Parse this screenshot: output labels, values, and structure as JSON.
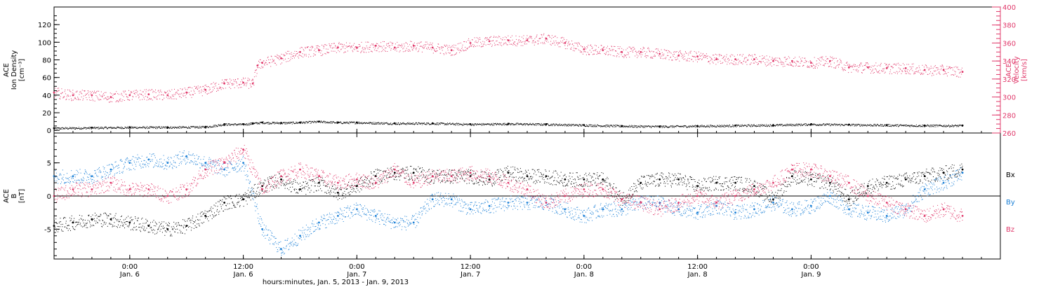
{
  "colors": {
    "black": "#000000",
    "red": "#e0386a",
    "blue": "#1a7fd6"
  },
  "chart_data": [
    {
      "type": "scatter",
      "panel": "top",
      "ylabel_left": [
        "ACE",
        "Ion Density",
        "[cm⁻³]"
      ],
      "ylabel_right": [
        "ACE",
        "Velocity",
        "[km/s]"
      ],
      "ylim_left": [
        -3,
        140
      ],
      "ylim_right": [
        260,
        400
      ],
      "yticks_left": [
        0,
        20,
        40,
        60,
        80,
        100,
        120
      ],
      "yticks_right": [
        260,
        280,
        300,
        320,
        340,
        360,
        380,
        400
      ],
      "series": [
        {
          "axis": "left",
          "color": "black",
          "x": [
            -8,
            -4,
            0,
            4,
            8,
            10,
            12,
            13,
            14,
            16,
            18,
            20,
            22,
            24,
            28,
            32,
            36,
            40,
            44,
            48,
            52,
            56,
            60,
            64,
            68,
            72,
            76,
            80,
            84,
            88
          ],
          "y": [
            2.5,
            3,
            3.5,
            3.5,
            4,
            7,
            7,
            8,
            9,
            8.5,
            9,
            10,
            9,
            9,
            8,
            8,
            7,
            7.5,
            7,
            6,
            5,
            4.5,
            5,
            5.5,
            6,
            7,
            6.5,
            6,
            5.5,
            5.5
          ]
        },
        {
          "axis": "right",
          "color": "red",
          "x": [
            -8,
            -6,
            -4,
            -2,
            0,
            2,
            4,
            6,
            8,
            10,
            12,
            13,
            13.5,
            14,
            16,
            18,
            20,
            22,
            24,
            26,
            28,
            30,
            32,
            34,
            36,
            38,
            40,
            42,
            44,
            46,
            48,
            50,
            52,
            54,
            56,
            58,
            60,
            62,
            64,
            66,
            68,
            70,
            72,
            74,
            76,
            78,
            80,
            82,
            84,
            86,
            88
          ],
          "y": [
            305,
            302,
            302,
            300,
            302,
            303,
            302,
            305,
            308,
            315,
            316,
            315,
            335,
            338,
            343,
            350,
            352,
            355,
            355,
            357,
            355,
            357,
            355,
            352,
            360,
            362,
            363,
            363,
            365,
            360,
            353,
            352,
            350,
            350,
            348,
            346,
            345,
            342,
            342,
            342,
            340,
            340,
            338,
            340,
            333,
            333,
            332,
            332,
            330,
            330,
            328
          ]
        }
      ]
    },
    {
      "type": "scatter",
      "panel": "bottom",
      "ylabel_left": [
        "ACE",
        "B",
        "[nT]"
      ],
      "ylim": [
        -9.5,
        9.5
      ],
      "yticks": [
        -5,
        0,
        5
      ],
      "legend": [
        "Bx",
        "By",
        "Bz"
      ],
      "legend_placement": "right",
      "series": [
        {
          "name": "Bx",
          "color": "black",
          "x": [
            -8,
            -6,
            -4,
            -2,
            0,
            2,
            4,
            6,
            8,
            10,
            12,
            14,
            16,
            18,
            20,
            22,
            24,
            26,
            28,
            30,
            32,
            34,
            36,
            38,
            40,
            42,
            44,
            46,
            48,
            50,
            52,
            54,
            56,
            58,
            60,
            62,
            64,
            66,
            68,
            70,
            72,
            74,
            76,
            78,
            80,
            82,
            84,
            86,
            88
          ],
          "y": [
            -4.5,
            -4,
            -3.5,
            -3.5,
            -4,
            -4.5,
            -5,
            -4.5,
            -3,
            -1,
            -0.5,
            1.5,
            2.5,
            1,
            2,
            0.5,
            1.5,
            3,
            3.5,
            3.5,
            3,
            3,
            3,
            2.5,
            3.5,
            3,
            3,
            2.5,
            2.5,
            2.5,
            -0.5,
            2,
            2.5,
            2.5,
            1.5,
            2,
            2,
            1.5,
            -0.5,
            3,
            2.5,
            2,
            -0.5,
            1.5,
            2,
            2.5,
            3,
            3.5,
            4
          ]
        },
        {
          "name": "By",
          "color": "blue",
          "x": [
            -8,
            -6,
            -4,
            -2,
            0,
            2,
            4,
            6,
            8,
            10,
            12,
            14,
            16,
            18,
            20,
            22,
            24,
            26,
            28,
            30,
            32,
            34,
            36,
            38,
            40,
            42,
            44,
            46,
            48,
            50,
            52,
            54,
            56,
            58,
            60,
            62,
            64,
            66,
            68,
            70,
            72,
            74,
            76,
            78,
            80,
            82,
            84,
            86,
            88
          ],
          "y": [
            3,
            3,
            3,
            4,
            5,
            5.5,
            5,
            6,
            5,
            4,
            5,
            -5,
            -8,
            -6,
            -4,
            -3,
            -2,
            -3,
            -4,
            -4,
            -0.5,
            -0.5,
            -2,
            -1.5,
            -1,
            -1,
            -1,
            -2,
            -3,
            -2,
            -2,
            -1,
            -1,
            -2,
            -2.5,
            -1.5,
            -2.5,
            -2,
            -1,
            -2,
            -1.5,
            0,
            -2,
            -2.5,
            -3,
            -2,
            1,
            2,
            3.5
          ]
        },
        {
          "name": "Bz",
          "color": "red",
          "x": [
            -8,
            -6,
            -4,
            -2,
            0,
            2,
            4,
            6,
            8,
            10,
            12,
            14,
            16,
            18,
            20,
            22,
            24,
            26,
            28,
            30,
            32,
            34,
            36,
            38,
            40,
            42,
            44,
            46,
            48,
            50,
            52,
            54,
            56,
            58,
            60,
            62,
            64,
            66,
            68,
            70,
            72,
            74,
            76,
            78,
            80,
            82,
            84,
            86,
            88
          ],
          "y": [
            0,
            1,
            1,
            2,
            1,
            1,
            0,
            1,
            4,
            5,
            7,
            1,
            3,
            4,
            3,
            2,
            2.5,
            2,
            4,
            2,
            3,
            3,
            3.5,
            3,
            2,
            1,
            -1,
            0,
            1,
            1,
            -0.5,
            -1,
            -2,
            -1,
            0,
            -1,
            0,
            1,
            2,
            4,
            4,
            3,
            2,
            0,
            -1,
            -2,
            -3,
            -2,
            -3
          ]
        }
      ]
    }
  ],
  "x_axis": {
    "range": [
      -8,
      92
    ],
    "ticks": [
      {
        "x": 0,
        "time": "0:00",
        "date": "Jan. 6"
      },
      {
        "x": 12,
        "time": "12:00",
        "date": "Jan. 6"
      },
      {
        "x": 24,
        "time": "0:00",
        "date": "Jan. 7"
      },
      {
        "x": 36,
        "time": "12:00",
        "date": "Jan. 7"
      },
      {
        "x": 48,
        "time": "0:00",
        "date": "Jan. 8"
      },
      {
        "x": 60,
        "time": "12:00",
        "date": "Jan. 8"
      },
      {
        "x": 72,
        "time": "0:00",
        "date": "Jan. 9"
      }
    ],
    "xlabel": "hours:minutes, Jan. 5, 2013 - Jan. 9, 2013"
  }
}
